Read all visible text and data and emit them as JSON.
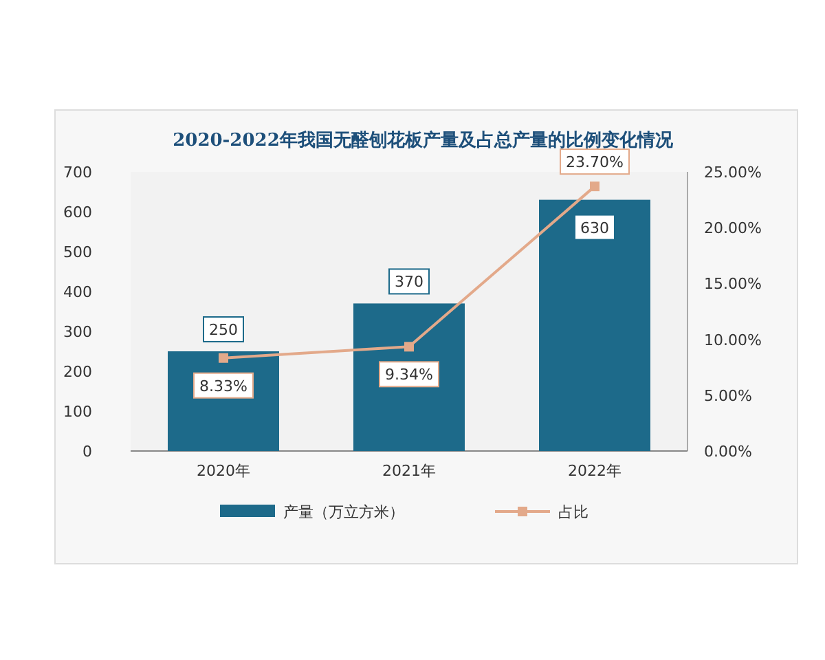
{
  "chart_data": {
    "type": "bar",
    "title": "2020-2022年我国无醛刨花板产量及占总产量的比例变化情况",
    "categories": [
      "2020年",
      "2021年",
      "2022年"
    ],
    "series": [
      {
        "name": "产量（万立方米）",
        "color": "#1d6a8a",
        "values": [
          250,
          370,
          630
        ]
      },
      {
        "name": "占比",
        "type": "line",
        "axis": "y2",
        "color": "#e3a98a",
        "values": [
          8.33,
          9.34,
          23.7
        ],
        "value_labels": [
          "8.33%",
          "9.34%",
          "23.70%"
        ]
      }
    ],
    "data_labels": true,
    "ylim": [
      0,
      700
    ],
    "yticks": [
      0,
      100,
      200,
      300,
      400,
      500,
      600,
      700
    ],
    "y2lim": [
      0,
      25
    ],
    "y2ticks": [
      {
        "value": 0,
        "label": "0.00%"
      },
      {
        "value": 5,
        "label": "5.00%"
      },
      {
        "value": 10,
        "label": "10.00%"
      },
      {
        "value": 15,
        "label": "15.00%"
      },
      {
        "value": 20,
        "label": "20.00%"
      },
      {
        "value": 25,
        "label": "25.00%"
      }
    ],
    "marker": "square",
    "legend": "bottom"
  }
}
